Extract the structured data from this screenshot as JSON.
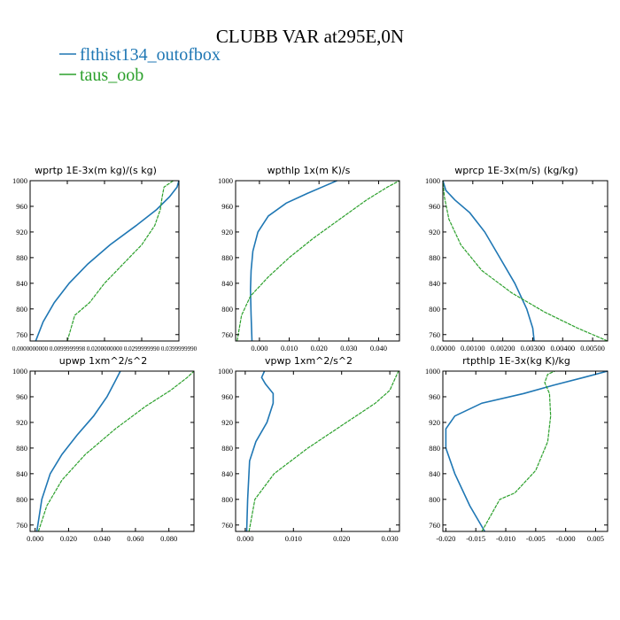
{
  "figure": {
    "title": "CLUBB VAR at295E,0N",
    "legend": [
      {
        "label": "flthist134_outofbox",
        "color": "#1f77b4"
      },
      {
        "label": "taus_oob",
        "color": "#2ca02c"
      }
    ]
  },
  "chart_data": [
    {
      "type": "line",
      "title": "wprtp  1E-3x(m kg)/(s kg)",
      "xlim": [
        0.0,
        0.04
      ],
      "ylim": [
        1000,
        750
      ],
      "xticks": [
        0.0,
        0.01,
        0.02,
        0.03,
        0.04
      ],
      "xtick_labels": [
        "0.0000000000",
        "0.0099999998",
        "0.0200000000",
        "0.0299999990",
        "0.0399999990"
      ],
      "yticks": [
        760,
        800,
        840,
        880,
        920,
        960,
        1000
      ],
      "y_on_left": true,
      "series": [
        {
          "name": "flthist134_outofbox",
          "color": "#1f77b4",
          "x": [
            0.0015,
            0.0035,
            0.0065,
            0.0105,
            0.0155,
            0.0215,
            0.0285,
            0.034,
            0.0375,
            0.0395,
            0.04
          ],
          "y": [
            750,
            780,
            810,
            840,
            870,
            900,
            930,
            955,
            975,
            990,
            1000
          ]
        },
        {
          "name": "taus_oob",
          "color": "#2ca02c",
          "x": [
            0.01,
            0.011,
            0.012,
            0.016,
            0.02,
            0.025,
            0.03,
            0.0335,
            0.035,
            0.0355,
            0.036,
            0.0385
          ],
          "y": [
            750,
            770,
            790,
            810,
            840,
            870,
            900,
            930,
            955,
            975,
            990,
            1000
          ]
        }
      ]
    },
    {
      "type": "line",
      "title": "wpthlp  1x(m K)/s",
      "xlim": [
        -0.008,
        0.047
      ],
      "ylim": [
        1000,
        750
      ],
      "xticks": [
        0.0,
        0.01,
        0.02,
        0.03,
        0.04
      ],
      "xtick_labels": [
        "0.000",
        "0.010",
        "0.020",
        "0.030",
        "0.040"
      ],
      "yticks": [
        760,
        800,
        840,
        880,
        920,
        960,
        1000
      ],
      "y_on_left": true,
      "series": [
        {
          "name": "flthist134_outofbox",
          "color": "#1f77b4",
          "x": [
            -0.0025,
            -0.0028,
            -0.003,
            -0.0028,
            -0.0022,
            -0.0005,
            0.003,
            0.009,
            0.016,
            0.022,
            0.026
          ],
          "y": [
            750,
            790,
            830,
            860,
            890,
            920,
            945,
            965,
            980,
            992,
            1000
          ]
        },
        {
          "name": "taus_oob",
          "color": "#2ca02c",
          "x": [
            -0.0075,
            -0.006,
            -0.003,
            0.003,
            0.01,
            0.018,
            0.027,
            0.036,
            0.043,
            0.047
          ],
          "y": [
            750,
            790,
            820,
            850,
            880,
            910,
            940,
            970,
            990,
            1000
          ]
        }
      ]
    },
    {
      "type": "line",
      "title": "wprcp  1E-3x(m/s) (kg/kg)",
      "xlim": [
        0.0,
        0.0055
      ],
      "ylim": [
        1000,
        750
      ],
      "xticks": [
        0.0,
        0.001,
        0.002,
        0.003,
        0.004,
        0.005
      ],
      "xtick_labels": [
        "0.00000",
        "0.00100",
        "0.00200",
        "0.00300",
        "0.00400",
        "0.00500"
      ],
      "yticks": [
        760,
        800,
        840,
        880,
        920,
        960,
        1000
      ],
      "y_on_left": true,
      "series": [
        {
          "name": "flthist134_outofbox",
          "color": "#1f77b4",
          "x": [
            0.00305,
            0.003,
            0.0028,
            0.0024,
            0.0019,
            0.0014,
            0.0009,
            0.0004,
            0.0001,
            0.0
          ],
          "y": [
            750,
            770,
            800,
            840,
            880,
            920,
            950,
            970,
            985,
            1000
          ]
        },
        {
          "name": "taus_oob",
          "color": "#2ca02c",
          "x": [
            0.0055,
            0.0045,
            0.0034,
            0.0023,
            0.0013,
            0.0006,
            0.0002,
            5e-05,
            0.0
          ],
          "y": [
            750,
            770,
            795,
            825,
            860,
            900,
            940,
            975,
            1000
          ]
        }
      ]
    },
    {
      "type": "line",
      "title": "upwp   1xm^2/s^2",
      "xlim": [
        -0.003,
        0.095
      ],
      "ylim": [
        1000,
        750
      ],
      "xticks": [
        0.0,
        0.02,
        0.04,
        0.06,
        0.08
      ],
      "xtick_labels": [
        "0.000",
        "0.020",
        "0.040",
        "0.060",
        "0.080"
      ],
      "yticks": [
        760,
        800,
        840,
        880,
        920,
        960,
        1000
      ],
      "y_on_left": true,
      "series": [
        {
          "name": "flthist134_outofbox",
          "color": "#1f77b4",
          "x": [
            0.001,
            0.004,
            0.009,
            0.016,
            0.025,
            0.035,
            0.043,
            0.048,
            0.051
          ],
          "y": [
            750,
            800,
            840,
            870,
            900,
            930,
            960,
            985,
            1000
          ]
        },
        {
          "name": "taus_oob",
          "color": "#2ca02c",
          "x": [
            0.002,
            0.007,
            0.016,
            0.03,
            0.048,
            0.066,
            0.081,
            0.091,
            0.095
          ],
          "y": [
            750,
            790,
            830,
            870,
            910,
            945,
            970,
            990,
            1000
          ]
        }
      ]
    },
    {
      "type": "line",
      "title": "vpwp   1xm^2/s^2",
      "xlim": [
        -0.002,
        0.032
      ],
      "ylim": [
        1000,
        750
      ],
      "xticks": [
        0.0,
        0.01,
        0.02,
        0.03
      ],
      "xtick_labels": [
        "0.000",
        "0.010",
        "0.020",
        "0.030"
      ],
      "yticks": [
        760,
        800,
        840,
        880,
        920,
        960,
        1000
      ],
      "y_on_left": true,
      "series": [
        {
          "name": "flthist134_outofbox",
          "color": "#1f77b4",
          "x": [
            0.0003,
            0.0005,
            0.0009,
            0.0022,
            0.0045,
            0.0058,
            0.0058,
            0.0042,
            0.0034,
            0.004
          ],
          "y": [
            750,
            800,
            860,
            890,
            920,
            950,
            965,
            980,
            990,
            1000
          ]
        },
        {
          "name": "taus_oob",
          "color": "#2ca02c",
          "x": [
            0.0008,
            0.002,
            0.006,
            0.013,
            0.021,
            0.027,
            0.03,
            0.0312,
            0.0318
          ],
          "y": [
            750,
            800,
            840,
            880,
            920,
            950,
            970,
            990,
            1000
          ]
        }
      ]
    },
    {
      "type": "line",
      "title": "rtpthlp   1E-3x(kg K)/kg",
      "xlim": [
        -0.0205,
        0.007
      ],
      "ylim": [
        1000,
        750
      ],
      "xticks": [
        -0.02,
        -0.015,
        -0.01,
        -0.005,
        0.0,
        0.005
      ],
      "xtick_labels": [
        "-0.020",
        "-0.015",
        "-0.010",
        "-0.005",
        "-0.000",
        "0.005"
      ],
      "yticks": [
        760,
        800,
        840,
        880,
        920,
        960,
        1000
      ],
      "y_on_left": true,
      "series": [
        {
          "name": "flthist134_outofbox",
          "color": "#1f77b4",
          "x": [
            -0.0135,
            -0.016,
            -0.0185,
            -0.02,
            -0.02,
            -0.0185,
            -0.014,
            -0.007,
            -0.002,
            0.003,
            0.007
          ],
          "y": [
            750,
            790,
            840,
            880,
            910,
            930,
            950,
            965,
            978,
            990,
            1000
          ]
        },
        {
          "name": "taus_oob",
          "color": "#2ca02c",
          "x": [
            -0.014,
            -0.011,
            -0.0085,
            -0.005,
            -0.003,
            -0.0025,
            -0.0027,
            -0.0035,
            -0.003,
            -0.0018
          ],
          "y": [
            750,
            800,
            810,
            845,
            890,
            930,
            965,
            982,
            995,
            1000
          ]
        }
      ]
    }
  ]
}
